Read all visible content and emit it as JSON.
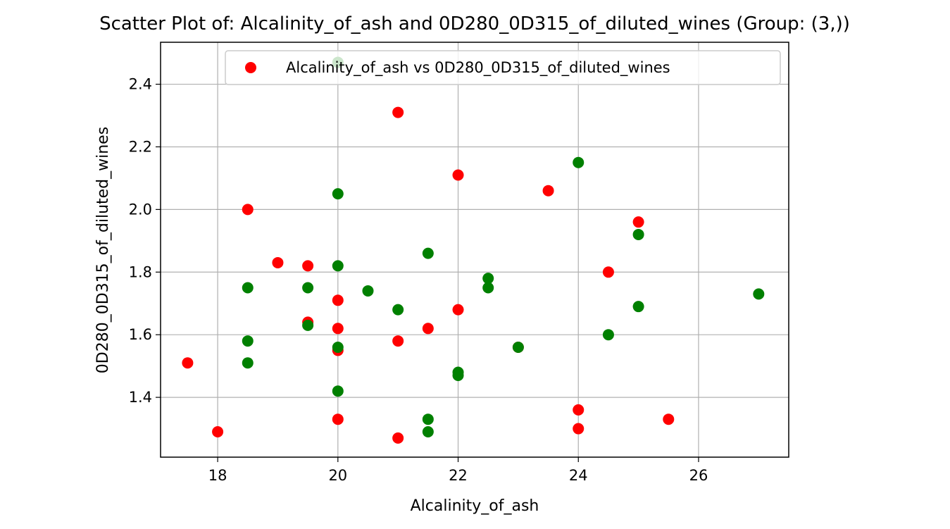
{
  "chart_data": {
    "type": "scatter",
    "title": "Scatter Plot of: Alcalinity_of_ash and 0D280_0D315_of_diluted_wines (Group: (3,))",
    "xlabel": "Alcalinity_of_ash",
    "ylabel": "0D280_0D315_of_diluted_wines",
    "xlim": [
      17.05,
      27.5
    ],
    "ylim": [
      1.209,
      2.534
    ],
    "xticks": [
      18,
      20,
      22,
      24,
      26
    ],
    "yticks": [
      1.4,
      1.6,
      1.8,
      2.0,
      2.2,
      2.4
    ],
    "grid": true,
    "legend": {
      "placement": "top-center",
      "label": "Alcalinity_of_ash vs 0D280_0D315_of_diluted_wines"
    },
    "colors": {
      "red": "#ff0000",
      "green": "#008000"
    },
    "series": [
      {
        "name": "Alcalinity_of_ash vs 0D280_0D315_of_diluted_wines",
        "color": "#ff0000",
        "points": [
          [
            17.5,
            1.51
          ],
          [
            18.0,
            1.29
          ],
          [
            18.5,
            2.0
          ],
          [
            19.0,
            1.83
          ],
          [
            19.5,
            1.82
          ],
          [
            19.5,
            1.64
          ],
          [
            20.0,
            1.71
          ],
          [
            20.0,
            1.62
          ],
          [
            20.0,
            1.55
          ],
          [
            20.0,
            1.33
          ],
          [
            21.0,
            2.31
          ],
          [
            21.0,
            1.58
          ],
          [
            21.0,
            1.27
          ],
          [
            21.5,
            1.62
          ],
          [
            22.0,
            2.11
          ],
          [
            22.0,
            1.68
          ],
          [
            23.0,
            1.56
          ],
          [
            23.5,
            2.06
          ],
          [
            24.0,
            1.36
          ],
          [
            24.0,
            1.3
          ],
          [
            24.5,
            1.8
          ],
          [
            25.0,
            1.96
          ],
          [
            25.5,
            1.33
          ]
        ]
      },
      {
        "color": "#008000",
        "points": [
          [
            18.5,
            1.75
          ],
          [
            18.5,
            1.58
          ],
          [
            18.5,
            1.51
          ],
          [
            19.5,
            1.75
          ],
          [
            19.5,
            1.63
          ],
          [
            20.0,
            2.47
          ],
          [
            20.0,
            2.05
          ],
          [
            20.0,
            1.82
          ],
          [
            20.0,
            1.56
          ],
          [
            20.0,
            1.42
          ],
          [
            20.5,
            1.74
          ],
          [
            21.0,
            1.68
          ],
          [
            21.5,
            1.86
          ],
          [
            21.5,
            1.33
          ],
          [
            21.5,
            1.29
          ],
          [
            22.0,
            1.48
          ],
          [
            22.0,
            1.47
          ],
          [
            22.5,
            1.78
          ],
          [
            22.5,
            1.75
          ],
          [
            23.0,
            1.56
          ],
          [
            24.0,
            2.15
          ],
          [
            24.5,
            1.6
          ],
          [
            25.0,
            1.92
          ],
          [
            25.0,
            1.69
          ],
          [
            27.0,
            1.73
          ]
        ]
      }
    ]
  }
}
